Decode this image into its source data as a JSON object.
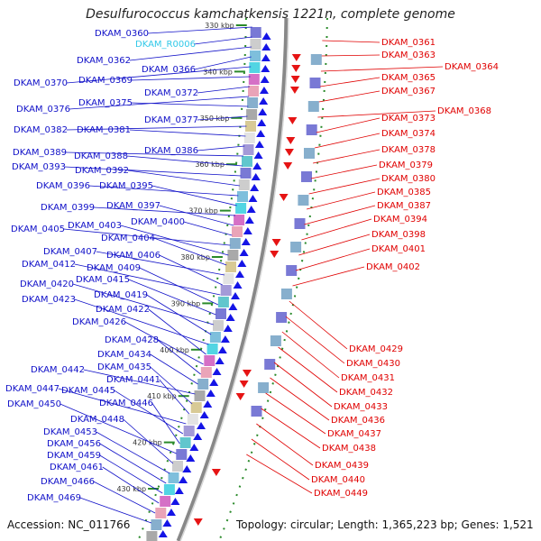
{
  "title": "Desulfurococcus kamchatkensis 1221n, complete genome",
  "footer": {
    "accession_label": "Accession:",
    "accession": "NC_011766",
    "topology_label": "Topology:",
    "topology": "circular",
    "length_label": "Length:",
    "length": "1,365,223 bp",
    "genes_label": "Genes:",
    "genes": "1,521"
  },
  "colors": {
    "left_labels": "#1010c8",
    "rna_label": "#30c8e8",
    "right_labels": "#e00000",
    "backbone": "#888888",
    "dots": "#2a8a2a",
    "forward_arrows": "#1414e6",
    "reverse_arrows": "#e61414"
  },
  "ticks": [
    "330 kbp",
    "340 kbp",
    "350 kbp",
    "360 kbp",
    "370 kbp",
    "380 kbp",
    "390 kbp",
    "400 kbp",
    "410 kbp",
    "420 kbp",
    "430 kbp"
  ],
  "left_labels": [
    "DKAM_0360",
    "DKAM_R0006",
    "DKAM_0362",
    "DKAM_0366",
    "DKAM_0370",
    "DKAM_0369",
    "DKAM_0372",
    "DKAM_0376",
    "DKAM_0375",
    "DKAM_0377",
    "DKAM_0382",
    "DKAM_0381",
    "DKAM_0386",
    "DKAM_0389",
    "DKAM_0388",
    "DKAM_0393",
    "DKAM_0392",
    "DKAM_0396",
    "DKAM_0395",
    "DKAM_0399",
    "DKAM_0397",
    "DKAM_0400",
    "DKAM_0405",
    "DKAM_0403",
    "DKAM_0404",
    "DKAM_0407",
    "DKAM_0406",
    "DKAM_0412",
    "DKAM_0409",
    "DKAM_0415",
    "DKAM_0420",
    "DKAM_0419",
    "DKAM_0423",
    "DKAM_0422",
    "DKAM_0426",
    "DKAM_0428",
    "DKAM_0434",
    "DKAM_0442",
    "DKAM_0435",
    "DKAM_0441",
    "DKAM_0447",
    "DKAM_0445",
    "DKAM_0446",
    "DKAM_0450",
    "DKAM_0448",
    "DKAM_0453",
    "DKAM_0456",
    "DKAM_0459",
    "DKAM_0461",
    "DKAM_0466",
    "DKAM_0469"
  ],
  "right_labels": [
    "DKAM_0361",
    "DKAM_0363",
    "DKAM_0364",
    "DKAM_0365",
    "DKAM_0367",
    "DKAM_0368",
    "DKAM_0373",
    "DKAM_0374",
    "DKAM_0378",
    "DKAM_0379",
    "DKAM_0380",
    "DKAM_0385",
    "DKAM_0387",
    "DKAM_0394",
    "DKAM_0398",
    "DKAM_0401",
    "DKAM_0402",
    "DKAM_0429",
    "DKAM_0430",
    "DKAM_0431",
    "DKAM_0432",
    "DKAM_0433",
    "DKAM_0436",
    "DKAM_0437",
    "DKAM_0438",
    "DKAM_0439",
    "DKAM_0440",
    "DKAM_0449"
  ]
}
